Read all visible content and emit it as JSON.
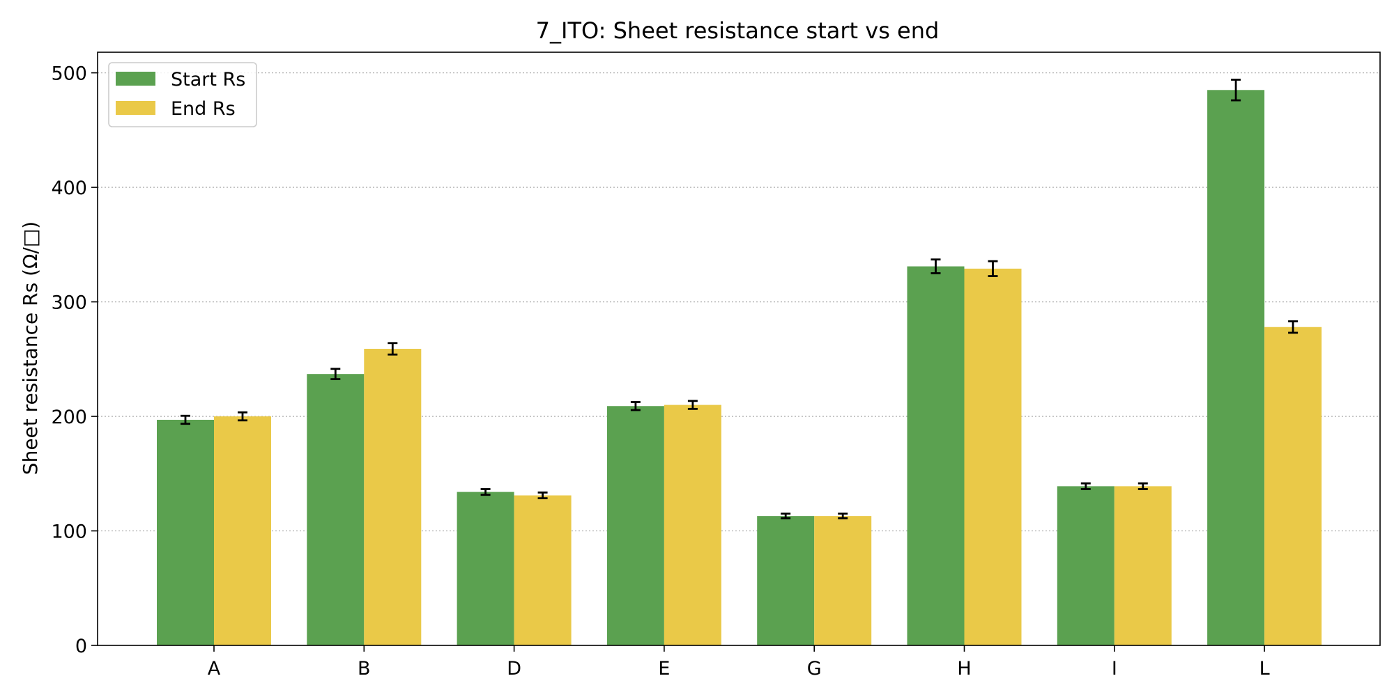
{
  "chart_data": {
    "type": "bar",
    "title": "7_ITO: Sheet resistance start vs end",
    "xlabel": "",
    "ylabel": "Sheet resistance Rs (Ω/□)",
    "categories": [
      "A",
      "B",
      "D",
      "E",
      "G",
      "H",
      "I",
      "L"
    ],
    "series": [
      {
        "name": "Start Rs",
        "color": "#5ba150",
        "values": [
          197,
          237,
          134,
          209,
          113,
          331,
          139,
          485
        ],
        "errors": [
          3.5,
          4.5,
          2.5,
          3.5,
          2.0,
          6.0,
          2.5,
          9.0
        ]
      },
      {
        "name": "End Rs",
        "color": "#eac948",
        "values": [
          200,
          259,
          131,
          210,
          113,
          329,
          139,
          278
        ],
        "errors": [
          3.5,
          5.0,
          2.5,
          3.5,
          2.0,
          6.5,
          2.5,
          5.0
        ]
      }
    ],
    "ylim": [
      0,
      518
    ],
    "yticks": [
      0,
      100,
      200,
      300,
      400,
      500
    ],
    "grid": "y-dotted",
    "legend_position": "top-left"
  }
}
